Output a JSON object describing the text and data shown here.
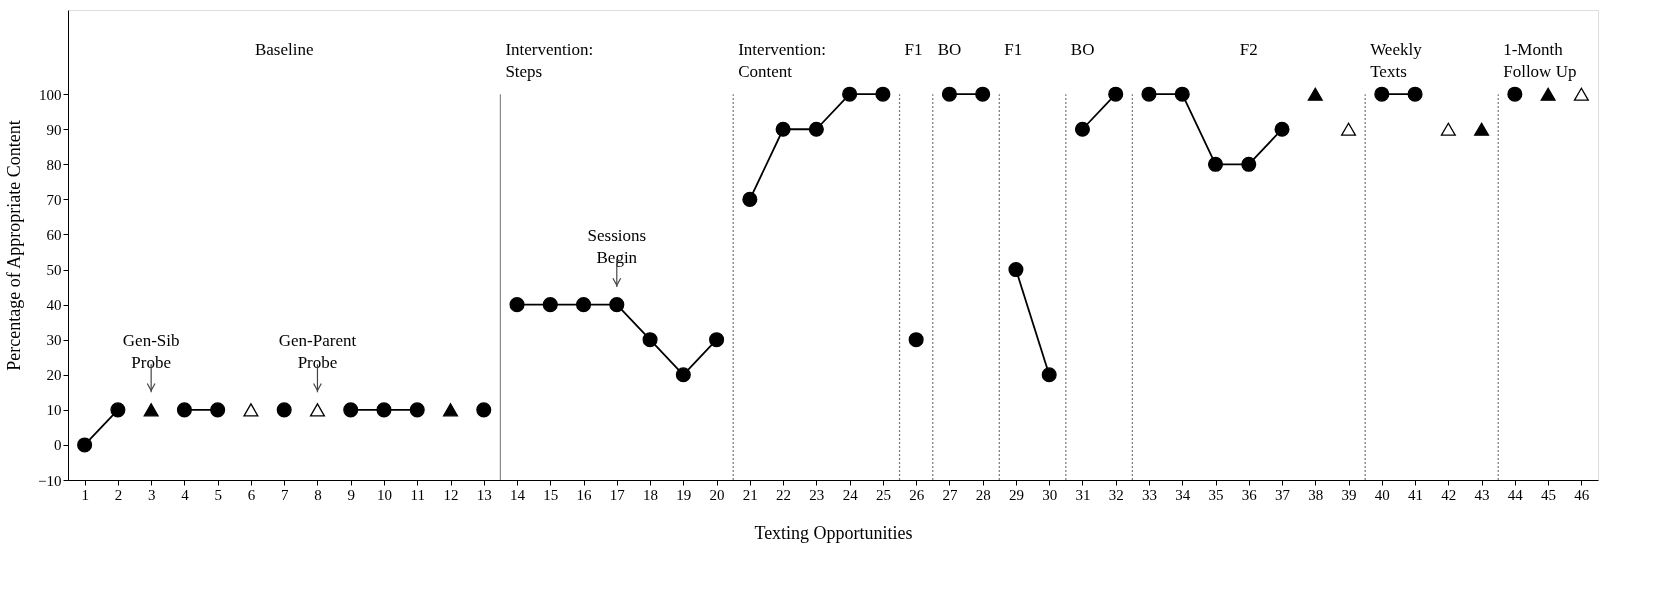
{
  "chart_data": {
    "type": "line",
    "xlabel": "Texting Opportunities",
    "ylabel": "Percentage of Appropriate Content",
    "xlim": [
      0.5,
      46.5
    ],
    "xticks": [
      1,
      2,
      3,
      4,
      5,
      6,
      7,
      8,
      9,
      10,
      11,
      12,
      13,
      14,
      15,
      16,
      17,
      18,
      19,
      20,
      21,
      22,
      23,
      24,
      25,
      26,
      27,
      28,
      29,
      30,
      31,
      32,
      33,
      34,
      35,
      36,
      37,
      38,
      39,
      40,
      41,
      42,
      43,
      44,
      45,
      46
    ],
    "ylim": [
      -10,
      124
    ],
    "yticks": [
      -10,
      0,
      10,
      20,
      30,
      40,
      50,
      60,
      70,
      80,
      90,
      100
    ],
    "grid": false,
    "series": [
      {
        "marker": "circle",
        "color": "#000000",
        "x": [
          1,
          2,
          3,
          4,
          5,
          6,
          7,
          8,
          9,
          10,
          11,
          12,
          13,
          14,
          15,
          16,
          17,
          18,
          19,
          20,
          21,
          22,
          23,
          24,
          25,
          26,
          27,
          28,
          29,
          30,
          31,
          32,
          33,
          34,
          35,
          36,
          37,
          38,
          39,
          40,
          41
        ],
        "values": [
          0,
          10,
          null,
          10,
          10,
          null,
          null,
          null,
          10,
          10,
          10,
          null,
          null,
          40,
          40,
          40,
          40,
          30,
          20,
          30,
          70,
          90,
          90,
          100,
          100,
          null,
          100,
          100,
          50,
          20,
          90,
          100,
          100,
          100,
          80,
          80,
          90,
          null,
          null,
          100,
          100
        ]
      },
      {
        "type": "scatter",
        "marker": "circle",
        "color": "#000000",
        "x": [
          7,
          13,
          26,
          44
        ],
        "values": [
          10,
          10,
          30,
          100
        ]
      },
      {
        "type": "scatter",
        "marker": "triangle",
        "color": "#000000",
        "x": [
          3,
          12,
          38,
          43,
          45
        ],
        "values": [
          10,
          10,
          100,
          90,
          100
        ]
      },
      {
        "type": "scatter",
        "marker": "triangle",
        "color": "#ffffff",
        "x": [
          6,
          8,
          39,
          42,
          46
        ],
        "values": [
          10,
          10,
          90,
          90,
          100
        ]
      }
    ],
    "ref_lines": [
      {
        "axis": "x",
        "value": 13.5,
        "color": "#888888",
        "line_style": "solid"
      },
      {
        "axis": "x",
        "value": 20.5,
        "color": "#777777",
        "line_style": "dotted"
      },
      {
        "axis": "x",
        "value": 25.5,
        "color": "#777777",
        "line_style": "dotted"
      },
      {
        "axis": "x",
        "value": 26.5,
        "color": "#777777",
        "line_style": "dotted"
      },
      {
        "axis": "x",
        "value": 28.5,
        "color": "#777777",
        "line_style": "dotted"
      },
      {
        "axis": "x",
        "value": 30.5,
        "color": "#777777",
        "line_style": "dotted"
      },
      {
        "axis": "x",
        "value": 32.5,
        "color": "#777777",
        "line_style": "dotted"
      },
      {
        "axis": "x",
        "value": 39.5,
        "color": "#777777",
        "line_style": "dotted"
      },
      {
        "axis": "x",
        "value": 43.5,
        "color": "#777777",
        "line_style": "dotted"
      }
    ],
    "annotations": [
      "Baseline",
      "Intervention:\nSteps",
      "Intervention:\nContent",
      "F1",
      "BO",
      "F1",
      "BO",
      "F2",
      "Weekly\nTexts",
      "1-Month\nFollow Up",
      {
        "text": "Gen-Sib\nProbe",
        "x": 3,
        "y": 10
      },
      {
        "text": "Gen-Parent\nProbe",
        "x": 8,
        "y": 10
      },
      {
        "text": "Sessions\nBegin",
        "x": 17,
        "y": 40
      }
    ]
  }
}
